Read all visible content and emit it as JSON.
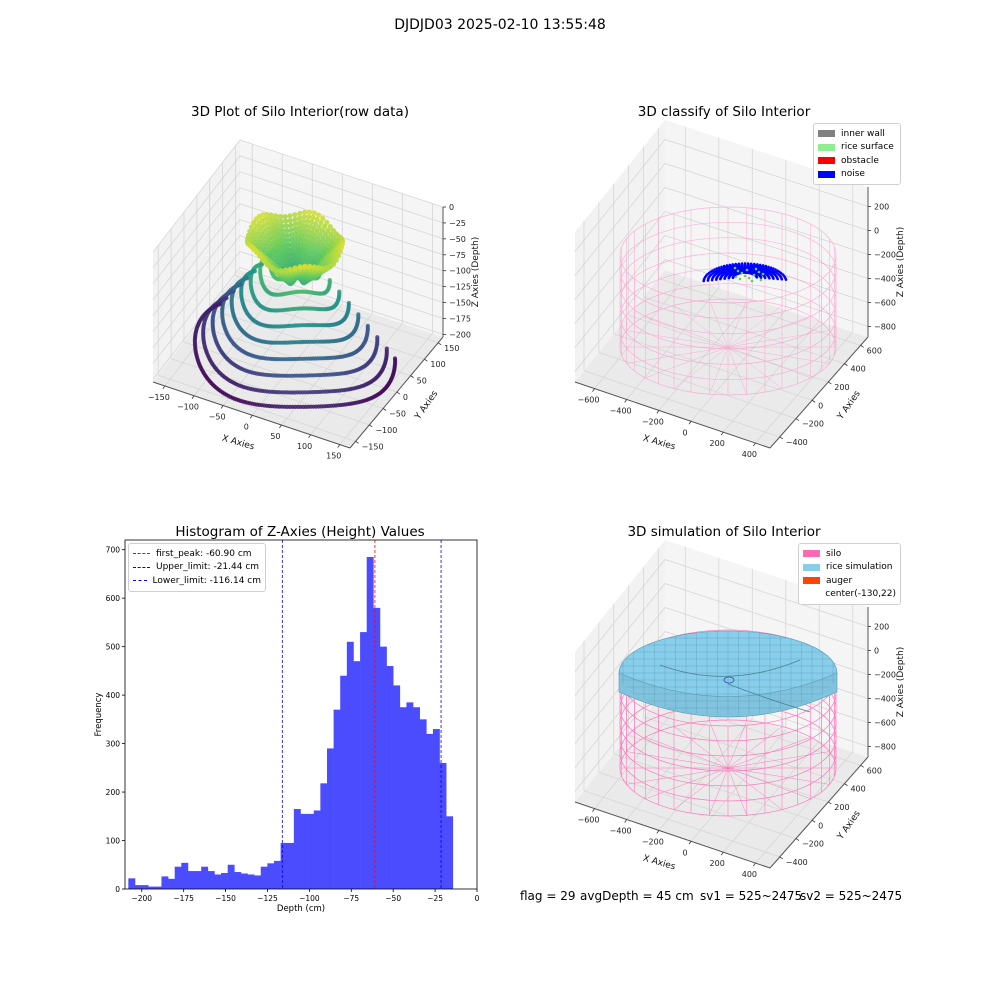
{
  "suptitle": "DJDJD03 2025-02-10 13:55:48",
  "footer": {
    "flag": "flag = 29",
    "avg": "avgDepth = 45 cm",
    "sv1": "sv1 = 525~2475",
    "sv2": "sv2 = 525~2475"
  },
  "chart_data": [
    {
      "type": "scatter",
      "title": "3D Plot of Silo Interior(row data)",
      "xlabel": "X Axies",
      "ylabel": "Y Axies",
      "zlabel": "Z Axies (Depth)",
      "x_ticks": [
        "−150",
        "−100",
        "−50",
        "0",
        "50",
        "100",
        "150"
      ],
      "y_ticks": [
        "−150",
        "−100",
        "−50",
        "0",
        "50",
        "100",
        "150"
      ],
      "z_ticks": [
        "0",
        "−25",
        "−50",
        "−75",
        "−100",
        "−125",
        "−150",
        "−175",
        "−200"
      ],
      "xlim": [
        -170,
        170
      ],
      "ylim": [
        -170,
        170
      ],
      "zlim": [
        -210,
        0
      ],
      "colormap": "viridis"
    },
    {
      "type": "scatter",
      "title": "3D classify of Silo Interior",
      "xlabel": "X Axies",
      "ylabel": "Y Axies",
      "zlabel": "Z Axies (Depth)",
      "x_ticks": [
        "−600",
        "−400",
        "−200",
        "0",
        "200",
        "400"
      ],
      "y_ticks": [
        "−400",
        "−200",
        "0",
        "200",
        "400",
        "600"
      ],
      "z_ticks": [
        "200",
        "0",
        "−200",
        "−400",
        "−600",
        "−800"
      ],
      "legend": [
        {
          "label": "inner wall",
          "color": "#808080"
        },
        {
          "label": "rice surface",
          "color": "#90ee90"
        },
        {
          "label": "obstacle",
          "color": "#ff0000"
        },
        {
          "label": "noise",
          "color": "#0000ff"
        }
      ],
      "legend_position": "top-right"
    },
    {
      "type": "bar",
      "title": "Histogram of Z-Axies (Height) Values",
      "xlabel": "Depth (cm)",
      "ylabel": "Frequency",
      "xlim": [
        -210,
        0
      ],
      "ylim": [
        0,
        720
      ],
      "x_ticks": [
        -200,
        -175,
        -150,
        -125,
        -100,
        -75,
        -50,
        -25,
        0
      ],
      "y_ticks": [
        0,
        100,
        200,
        300,
        400,
        500,
        600,
        700
      ],
      "bin_start": -208,
      "bin_width": 3.95,
      "values": [
        22,
        8,
        8,
        5,
        5,
        26,
        21,
        46,
        54,
        37,
        37,
        46,
        37,
        30,
        33,
        50,
        35,
        32,
        30,
        28,
        46,
        53,
        58,
        95,
        95,
        165,
        155,
        155,
        162,
        218,
        290,
        370,
        440,
        510,
        470,
        530,
        685,
        580,
        500,
        460,
        420,
        375,
        385,
        375,
        350,
        320,
        330,
        260,
        150
      ],
      "bar_color": "#4c4cff",
      "lines": [
        {
          "label": "first_peak: -60.90 cm",
          "value": -60.9,
          "color": "#ff0000"
        },
        {
          "label": "Upper_limit: -21.44 cm",
          "value": -21.44,
          "color": "#0000ff"
        },
        {
          "label": "Lower_limit: -116.14 cm",
          "value": -116.14,
          "color": "#0000ff"
        }
      ],
      "legend_position": "top-left"
    },
    {
      "type": "scatter",
      "title": "3D simulation of Silo Interior",
      "xlabel": "X Axies",
      "ylabel": "Y Axies",
      "zlabel": "Z Axies (Depth)",
      "x_ticks": [
        "−600",
        "−400",
        "−200",
        "0",
        "200",
        "400"
      ],
      "y_ticks": [
        "−400",
        "−200",
        "0",
        "200",
        "400",
        "600"
      ],
      "z_ticks": [
        "200",
        "0",
        "−200",
        "−400",
        "−600",
        "−800"
      ],
      "legend": [
        {
          "label": "silo",
          "color": "#ff69b4"
        },
        {
          "label": "rice simulation",
          "color": "#87ceeb"
        },
        {
          "label": "auger",
          "color": "#ff4500"
        },
        {
          "label": "center(-130,22)",
          "color": ""
        }
      ],
      "legend_position": "top-right"
    }
  ]
}
